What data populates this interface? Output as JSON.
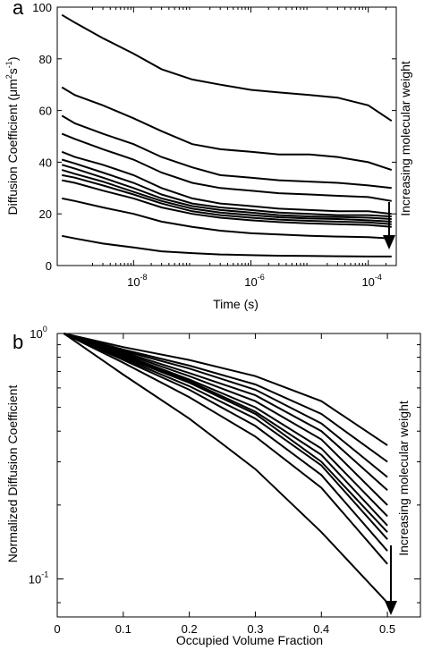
{
  "chart_data": [
    {
      "type": "line",
      "panel_label": "a",
      "xlabel": "Time (s)",
      "ylabel_main": "Diffusion Coefficient (",
      "ylabel_unit": "μm",
      "ylabel_sup1": "2",
      "ylabel_mid": "s",
      "ylabel_sup2": "-1",
      "ylabel_close": ")",
      "x_scale": "log",
      "xlim": [
        5e-10,
        0.0003
      ],
      "ylim": [
        0,
        100
      ],
      "xticks": [
        1e-08,
        1e-06,
        0.0001
      ],
      "xtick_labels": [
        {
          "base": "10",
          "exp": "-8"
        },
        {
          "base": "10",
          "exp": "-6"
        },
        {
          "base": "10",
          "exp": "-4"
        }
      ],
      "yticks": [
        0,
        20,
        40,
        60,
        80,
        100
      ],
      "ytick_labels": [
        "0",
        "20",
        "40",
        "60",
        "80",
        "100"
      ],
      "annotation": "Increasing molecular weight",
      "grid": false,
      "x": [
        6e-10,
        1e-09,
        3e-09,
        1e-08,
        3e-08,
        1e-07,
        3e-07,
        1e-06,
        3e-06,
        1e-05,
        3e-05,
        0.0001,
        0.00025
      ],
      "series": [
        {
          "values": [
            97,
            94,
            88,
            82,
            76,
            72,
            70,
            68,
            67,
            66,
            65,
            62,
            56
          ]
        },
        {
          "values": [
            69,
            66,
            62,
            57,
            52,
            47,
            45,
            44,
            43,
            43,
            42,
            40,
            37
          ]
        },
        {
          "values": [
            58,
            55,
            51,
            47,
            42,
            38,
            35,
            34,
            33,
            32.5,
            32,
            31,
            30
          ]
        },
        {
          "values": [
            51,
            49,
            45,
            41,
            36,
            32,
            30,
            29,
            28,
            27.5,
            27,
            26.5,
            25
          ]
        },
        {
          "values": [
            44,
            42,
            39,
            35,
            30,
            26,
            24,
            23,
            22,
            21.5,
            21,
            21,
            20
          ]
        },
        {
          "values": [
            41,
            39.5,
            36,
            32,
            27.5,
            24,
            22.5,
            21.5,
            20.5,
            20,
            19.5,
            19.5,
            19
          ]
        },
        {
          "values": [
            39,
            37.5,
            34,
            30,
            26,
            23,
            21.5,
            20.5,
            19.5,
            19,
            18.8,
            18.5,
            18
          ]
        },
        {
          "values": [
            37,
            35.5,
            32.5,
            28.5,
            25,
            22,
            20.5,
            19.5,
            18.7,
            18.2,
            18,
            17.5,
            17
          ]
        },
        {
          "values": [
            35,
            34,
            31,
            27.5,
            24,
            21,
            19.5,
            18.5,
            17.8,
            17.3,
            17,
            16.7,
            16
          ]
        },
        {
          "values": [
            33,
            32,
            29,
            26,
            22.5,
            20,
            18.5,
            17.5,
            16.8,
            16.3,
            16,
            15.7,
            15
          ]
        },
        {
          "values": [
            26,
            25,
            22.5,
            20,
            17,
            15,
            13.5,
            12.5,
            12,
            11.5,
            11.2,
            11,
            10.5
          ]
        },
        {
          "values": [
            11.5,
            10.5,
            8.5,
            7,
            5.5,
            4.8,
            4.3,
            4,
            3.8,
            3.7,
            3.6,
            3.5,
            3.5
          ]
        }
      ]
    },
    {
      "type": "line",
      "panel_label": "b",
      "xlabel": "Occupied Volume Fraction",
      "ylabel": "Normalized Diffusion Coefficient",
      "y_scale": "log",
      "xlim": [
        0,
        0.55
      ],
      "ylim": [
        0.07,
        1.0
      ],
      "xticks": [
        0,
        0.1,
        0.2,
        0.3,
        0.4,
        0.5
      ],
      "xtick_labels": [
        "0",
        "0.1",
        "0.2",
        "0.3",
        "0.4",
        "0.5"
      ],
      "yticks": [
        1.0,
        0.1
      ],
      "ytick_labels": [
        {
          "base": "10",
          "exp": "0"
        },
        {
          "base": "10",
          "exp": "-1"
        }
      ],
      "annotation": "Increasing molecular weight",
      "grid": false,
      "x": [
        0.01,
        0.1,
        0.2,
        0.3,
        0.4,
        0.5
      ],
      "series": [
        {
          "values": [
            1.0,
            0.88,
            0.78,
            0.67,
            0.53,
            0.35
          ]
        },
        {
          "values": [
            1.0,
            0.86,
            0.74,
            0.62,
            0.47,
            0.3
          ]
        },
        {
          "values": [
            1.0,
            0.85,
            0.72,
            0.59,
            0.43,
            0.26
          ]
        },
        {
          "values": [
            1.0,
            0.84,
            0.69,
            0.56,
            0.4,
            0.23
          ]
        },
        {
          "values": [
            1.0,
            0.83,
            0.67,
            0.53,
            0.37,
            0.2
          ]
        },
        {
          "values": [
            1.0,
            0.82,
            0.65,
            0.5,
            0.34,
            0.18
          ]
        },
        {
          "values": [
            1.0,
            0.81,
            0.64,
            0.48,
            0.32,
            0.165
          ]
        },
        {
          "values": [
            1.0,
            0.8,
            0.63,
            0.47,
            0.3,
            0.155
          ]
        },
        {
          "values": [
            1.0,
            0.79,
            0.61,
            0.45,
            0.29,
            0.145
          ]
        },
        {
          "values": [
            1.0,
            0.78,
            0.59,
            0.42,
            0.265,
            0.13
          ]
        },
        {
          "values": [
            1.0,
            0.76,
            0.55,
            0.38,
            0.235,
            0.115
          ]
        },
        {
          "values": [
            1.0,
            0.68,
            0.45,
            0.28,
            0.155,
            0.08
          ]
        }
      ]
    }
  ]
}
